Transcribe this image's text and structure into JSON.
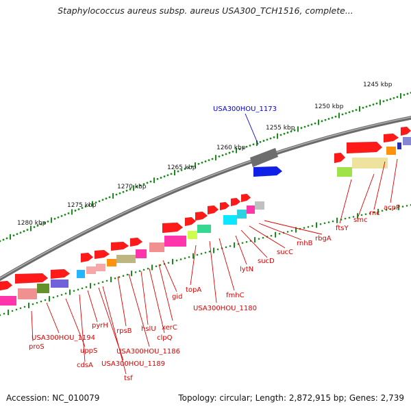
{
  "title": "Staphylococcus aureus subsp. aureus USA300_TCH1516, complete...",
  "footer": {
    "accession": "Accession: NC_010079",
    "topology": "Topology: circular; Length: 2,872,915 bp; Genes: 2,739"
  },
  "colors": {
    "label_red": "#dd0000",
    "label_blue": "#0000cc",
    "tick_green": "#1a8a1a",
    "backbone": "#808080"
  },
  "scale_labels": [
    "1245 kbp",
    "1250 kbp",
    "1255 kbp",
    "1260 kbp",
    "1265 kbp",
    "1270 kbp",
    "1275 kbp",
    "1280 kbp"
  ],
  "highlight_gene": "USA300HOU_1173",
  "gene_labels": [
    "acpP",
    "rnc",
    "smc",
    "ftsY",
    "rbgA",
    "rnhB",
    "sucC",
    "sucD",
    "lytN",
    "fmhC",
    "USA300HOU_1180",
    "topA",
    "gid",
    "xerC",
    "clpQ",
    "hslU",
    "USA300HOU_1186",
    "rpsB",
    "tsf",
    "USA300HOU_1189",
    "pyrH",
    "cdsA",
    "uppS",
    "proS",
    "USA300HOU_1194"
  ]
}
